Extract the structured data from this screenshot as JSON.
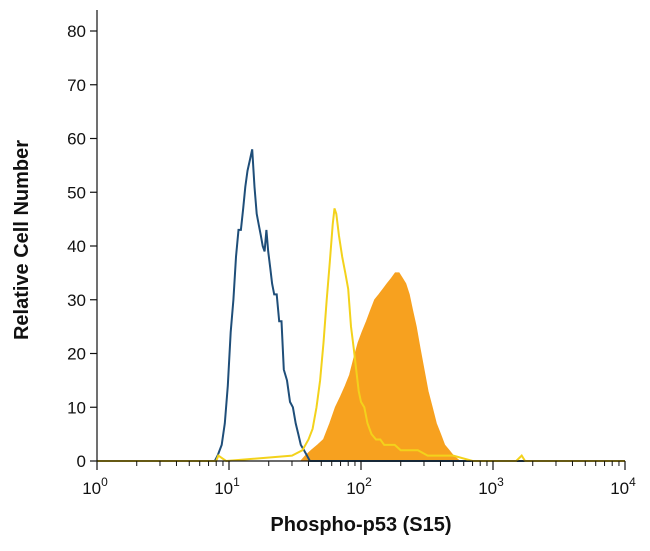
{
  "chart_data": {
    "type": "histogram",
    "title": "",
    "xlabel": "Phospho-p53 (S15)",
    "ylabel": "Relative Cell Number",
    "x_scale": "log",
    "xlim": [
      1,
      10000
    ],
    "ylim": [
      0,
      85
    ],
    "x_ticks": [
      {
        "value": 1,
        "base": "10",
        "exp": "0"
      },
      {
        "value": 10,
        "base": "10",
        "exp": "1"
      },
      {
        "value": 100,
        "base": "10",
        "exp": "2"
      },
      {
        "value": 1000,
        "base": "10",
        "exp": "3"
      },
      {
        "value": 10000,
        "base": "10",
        "exp": "4"
      }
    ],
    "y_ticks": [
      0,
      10,
      20,
      30,
      40,
      50,
      60,
      70,
      80
    ],
    "grid": false,
    "legend": "none",
    "series": [
      {
        "style": "outline",
        "color": "#1f4e79",
        "points": [
          [
            1,
            0
          ],
          [
            7.8,
            0
          ],
          [
            8.2,
            1
          ],
          [
            8.8,
            3
          ],
          [
            9.3,
            7
          ],
          [
            9.8,
            14
          ],
          [
            10.3,
            24
          ],
          [
            10.8,
            30
          ],
          [
            11.3,
            38
          ],
          [
            11.8,
            43
          ],
          [
            12.3,
            43
          ],
          [
            12.8,
            47
          ],
          [
            13.3,
            51
          ],
          [
            13.8,
            54
          ],
          [
            14.4,
            56
          ],
          [
            15,
            58
          ],
          [
            15.6,
            51
          ],
          [
            16.2,
            46
          ],
          [
            16.8,
            44
          ],
          [
            17.4,
            42
          ],
          [
            18,
            40
          ],
          [
            18.6,
            39
          ],
          [
            19.2,
            43
          ],
          [
            19.8,
            39
          ],
          [
            20.5,
            36
          ],
          [
            21.2,
            33
          ],
          [
            22,
            31
          ],
          [
            23,
            31
          ],
          [
            24,
            26
          ],
          [
            25,
            26
          ],
          [
            26,
            17
          ],
          [
            27.5,
            15
          ],
          [
            29,
            11
          ],
          [
            30.5,
            10
          ],
          [
            32,
            7
          ],
          [
            33.5,
            5
          ],
          [
            35,
            3
          ],
          [
            37,
            2
          ],
          [
            39,
            1
          ],
          [
            41,
            0
          ],
          [
            10000,
            0
          ]
        ]
      },
      {
        "style": "outline",
        "color": "#f3d21b",
        "points": [
          [
            1,
            0
          ],
          [
            8,
            0
          ],
          [
            8.3,
            1
          ],
          [
            9.5,
            0
          ],
          [
            30,
            1
          ],
          [
            36,
            2
          ],
          [
            40,
            4
          ],
          [
            43,
            6
          ],
          [
            46,
            10
          ],
          [
            49,
            15
          ],
          [
            52,
            22
          ],
          [
            55,
            30
          ],
          [
            58,
            37
          ],
          [
            61,
            44
          ],
          [
            63,
            47
          ],
          [
            65,
            46
          ],
          [
            68,
            42
          ],
          [
            72,
            38
          ],
          [
            76,
            35
          ],
          [
            80,
            32
          ],
          [
            84,
            25
          ],
          [
            88,
            21
          ],
          [
            92,
            17
          ],
          [
            96,
            13
          ],
          [
            100,
            11
          ],
          [
            106,
            10
          ],
          [
            112,
            7
          ],
          [
            120,
            5
          ],
          [
            130,
            4
          ],
          [
            140,
            4
          ],
          [
            150,
            3
          ],
          [
            165,
            3
          ],
          [
            180,
            3
          ],
          [
            200,
            2
          ],
          [
            230,
            2
          ],
          [
            270,
            2
          ],
          [
            320,
            1
          ],
          [
            400,
            1
          ],
          [
            500,
            1
          ],
          [
            700,
            0
          ],
          [
            1500,
            0
          ],
          [
            1650,
            1
          ],
          [
            1750,
            0
          ],
          [
            10000,
            0
          ]
        ]
      },
      {
        "style": "filled",
        "color": "#f7a11f",
        "points": [
          [
            1,
            0
          ],
          [
            35,
            0
          ],
          [
            38,
            1
          ],
          [
            42,
            2
          ],
          [
            47,
            3
          ],
          [
            52,
            4
          ],
          [
            58,
            7
          ],
          [
            64,
            10
          ],
          [
            70,
            12
          ],
          [
            76,
            14
          ],
          [
            82,
            16
          ],
          [
            88,
            19
          ],
          [
            95,
            22
          ],
          [
            102,
            24
          ],
          [
            110,
            26
          ],
          [
            118,
            28
          ],
          [
            127,
            30
          ],
          [
            137,
            31
          ],
          [
            147,
            32
          ],
          [
            158,
            33
          ],
          [
            170,
            34
          ],
          [
            182,
            35
          ],
          [
            194,
            35
          ],
          [
            206,
            34
          ],
          [
            218,
            33
          ],
          [
            232,
            31
          ],
          [
            246,
            28
          ],
          [
            262,
            25
          ],
          [
            280,
            21
          ],
          [
            300,
            17
          ],
          [
            322,
            13
          ],
          [
            346,
            10
          ],
          [
            372,
            7
          ],
          [
            400,
            5
          ],
          [
            430,
            3
          ],
          [
            465,
            2
          ],
          [
            500,
            1
          ],
          [
            560,
            0
          ],
          [
            10000,
            0
          ]
        ]
      }
    ]
  }
}
